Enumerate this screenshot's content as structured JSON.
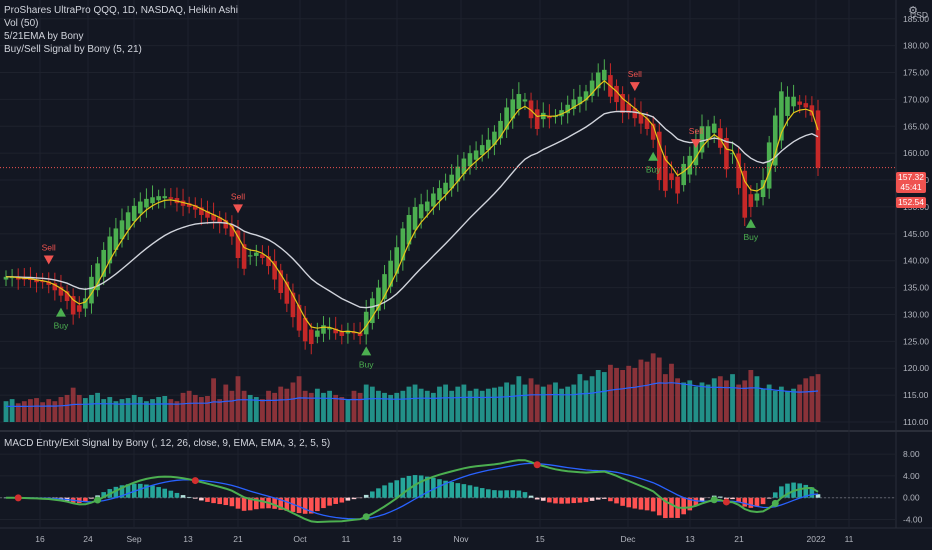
{
  "legend": {
    "symbol": "ProShares UltraPro QQQ, 1D, NASDAQ, Heikin Ashi",
    "vol": "Vol (50)",
    "ema": "5/21EMA by Bony",
    "signal": "Buy/Sell Signal by Bony (5, 21)",
    "macd": "MACD Entry/Exit Signal by Bony (, 12, 26, close, 9, EMA, EMA, 3, 2, 5, 5)"
  },
  "currency": "USD",
  "price_tag": {
    "price": "157.32",
    "countdown": "45:41",
    "ema": "152.54"
  },
  "colors": {
    "bg": "#131722",
    "up": "#4caf50",
    "down": "#c62828",
    "ema5": "#e6c619",
    "ema21": "#d1d4dc",
    "vol_up": "#26a69a",
    "vol_down": "#a0373d",
    "vol_ma": "#2962ff",
    "macd_green": "#4caf50",
    "macd_red": "#d32f2f",
    "macd_blue": "#2962ff"
  },
  "chart_data": [
    {
      "type": "candlestick",
      "title": "ProShares UltraPro QQQ, 1D, NASDAQ, Heikin Ashi",
      "ylim": [
        110,
        187
      ],
      "yticks": [
        "185.00",
        "180.00",
        "175.00",
        "170.00",
        "165.00",
        "160.00",
        "155.00",
        "150.00",
        "145.00",
        "140.00",
        "135.00",
        "130.00",
        "125.00",
        "120.00",
        "115.00",
        "110.00"
      ],
      "xticks": [
        "16",
        "24",
        "Sep",
        "13",
        "21",
        "Oct",
        "11",
        "19",
        "Nov",
        "15",
        "Dec",
        "13",
        "21",
        "2022",
        "11"
      ],
      "ha_close": [
        137,
        137,
        136.5,
        136.5,
        136.5,
        136,
        136,
        135.5,
        134.5,
        133.5,
        132.5,
        130,
        130.5,
        133,
        137,
        139.5,
        142,
        144.5,
        146,
        147.5,
        149,
        150.2,
        151,
        151.5,
        151.8,
        152,
        152,
        151.5,
        150.7,
        150.2,
        150,
        149.5,
        148.5,
        148,
        147.5,
        147,
        146,
        144.5,
        140.5,
        138.5,
        141,
        141.5,
        140.5,
        139,
        136.5,
        134,
        132,
        129.5,
        127,
        125,
        124.5,
        127,
        128,
        127.5,
        126.5,
        126,
        127,
        126.5,
        126,
        130.5,
        133,
        135,
        137.5,
        140,
        142.5,
        146,
        148.5,
        150,
        150.5,
        151,
        152.5,
        153.5,
        154.5,
        156,
        157.5,
        159,
        160,
        160.5,
        161.5,
        162.5,
        164,
        166,
        168.5,
        170,
        171,
        170,
        166.5,
        164.5,
        167.5,
        166.5,
        167,
        168,
        169,
        170,
        170.5,
        171.5,
        173.5,
        175,
        175.5,
        170.5,
        169.5,
        167.5,
        167.5,
        166.5,
        165.5,
        164.5,
        162.5,
        155,
        153,
        155,
        152.5,
        158,
        159.5,
        162.5,
        165,
        165,
        165.5,
        161,
        157,
        160,
        153.5,
        148,
        150,
        152.5,
        155,
        162,
        167,
        171.5,
        170.5,
        170.5,
        169,
        168.5,
        167,
        157.3
      ],
      "signals": [
        {
          "label": "Sell",
          "index": 7
        },
        {
          "label": "Buy",
          "index": 9
        },
        {
          "label": "Sell",
          "index": 38
        },
        {
          "label": "Buy",
          "index": 59
        },
        {
          "label": "Sell",
          "index": 103
        },
        {
          "label": "Buy",
          "index": 106
        },
        {
          "label": "Sell",
          "index": 113
        },
        {
          "label": "Buy",
          "index": 122
        }
      ]
    },
    {
      "type": "bar",
      "title": "Vol (50)",
      "ylim": [
        0,
        1
      ],
      "values": [
        0.2,
        0.22,
        0.18,
        0.2,
        0.22,
        0.23,
        0.19,
        0.22,
        0.2,
        0.24,
        0.26,
        0.33,
        0.26,
        0.23,
        0.26,
        0.28,
        0.22,
        0.24,
        0.2,
        0.22,
        0.23,
        0.26,
        0.24,
        0.2,
        0.22,
        0.24,
        0.25,
        0.22,
        0.2,
        0.28,
        0.3,
        0.26,
        0.24,
        0.25,
        0.42,
        0.22,
        0.36,
        0.3,
        0.44,
        0.3,
        0.26,
        0.24,
        0.22,
        0.3,
        0.28,
        0.34,
        0.32,
        0.38,
        0.44,
        0.3,
        0.28,
        0.32,
        0.28,
        0.3,
        0.26,
        0.24,
        0.22,
        0.3,
        0.28,
        0.36,
        0.34,
        0.3,
        0.28,
        0.26,
        0.28,
        0.3,
        0.34,
        0.36,
        0.32,
        0.3,
        0.28,
        0.34,
        0.36,
        0.3,
        0.34,
        0.36,
        0.3,
        0.32,
        0.3,
        0.32,
        0.33,
        0.34,
        0.38,
        0.36,
        0.44,
        0.36,
        0.42,
        0.36,
        0.34,
        0.36,
        0.38,
        0.32,
        0.34,
        0.36,
        0.46,
        0.4,
        0.44,
        0.5,
        0.48,
        0.55,
        0.52,
        0.5,
        0.54,
        0.52,
        0.6,
        0.58,
        0.66,
        0.62,
        0.46,
        0.56,
        0.42,
        0.38,
        0.4,
        0.34,
        0.38,
        0.36,
        0.42,
        0.44,
        0.4,
        0.46,
        0.36,
        0.4,
        0.5,
        0.44,
        0.32,
        0.36,
        0.3,
        0.34,
        0.3,
        0.32,
        0.36,
        0.42,
        0.44,
        0.46
      ],
      "direction": "ha"
    },
    {
      "type": "line",
      "title": "MACD Entry/Exit Signal by Bony (, 12, 26, close, 9, EMA, EMA, 3, 2, 5, 5)",
      "ylim": [
        -5.2,
        9.5
      ],
      "yticks": [
        "8.00",
        "4.00",
        "0.00",
        "-4.00"
      ]
    }
  ]
}
